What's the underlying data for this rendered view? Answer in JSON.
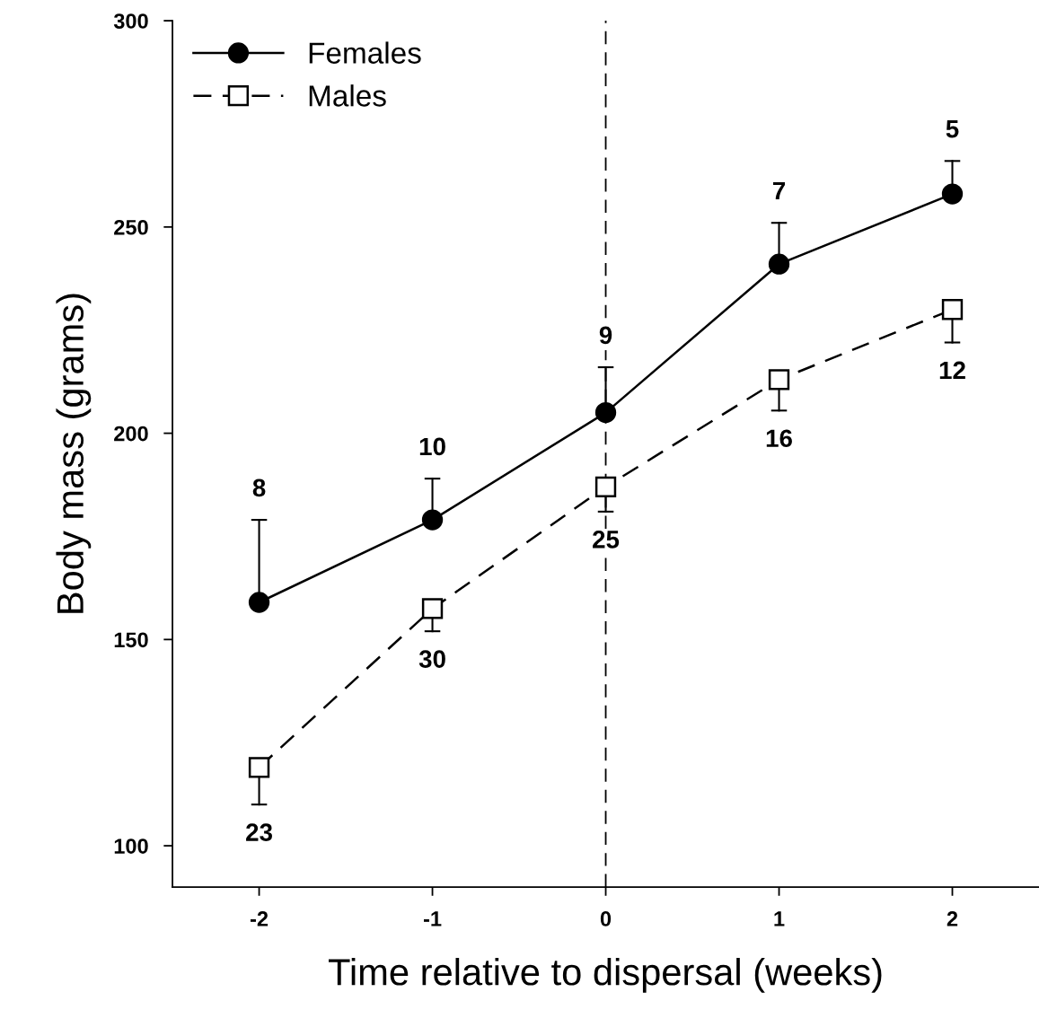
{
  "chart_data": {
    "type": "line",
    "xlabel": "Time relative to dispersal (weeks)",
    "ylabel": "Body mass (grams)",
    "x": [
      -2,
      -1,
      0,
      1,
      2
    ],
    "series": [
      {
        "name": "Females",
        "color": "#000000",
        "marker": "circle",
        "line_style": "solid",
        "values": [
          159,
          179,
          205,
          241,
          258
        ],
        "errors": [
          [
            159,
            179
          ],
          [
            179,
            189
          ],
          [
            205,
            216
          ],
          [
            241,
            251
          ],
          [
            258,
            266
          ]
        ]
      },
      {
        "name": "Males",
        "color": "#000000",
        "marker": "square",
        "line_style": "dashed",
        "values": [
          119,
          157.5,
          187,
          213,
          230
        ],
        "errors": [
          [
            110,
            119
          ],
          [
            152,
            157.5
          ],
          [
            181,
            187
          ],
          [
            205.5,
            213
          ],
          [
            222,
            230
          ]
        ]
      }
    ],
    "xlim": [
      -2.5,
      2.5
    ],
    "xticks": [
      -2,
      -1,
      0,
      1,
      2
    ],
    "ylim": [
      90,
      300
    ],
    "yticks": [
      100,
      150,
      200,
      250,
      300
    ],
    "annotations": [
      "8",
      "10",
      "9",
      "7",
      "5",
      "23",
      "30",
      "25",
      "16",
      "12"
    ],
    "ref_lines": [
      {
        "axis": "x",
        "value": 0,
        "color": "#000000",
        "line_style": "dashed"
      }
    ],
    "legend": "top left",
    "grid": false
  }
}
